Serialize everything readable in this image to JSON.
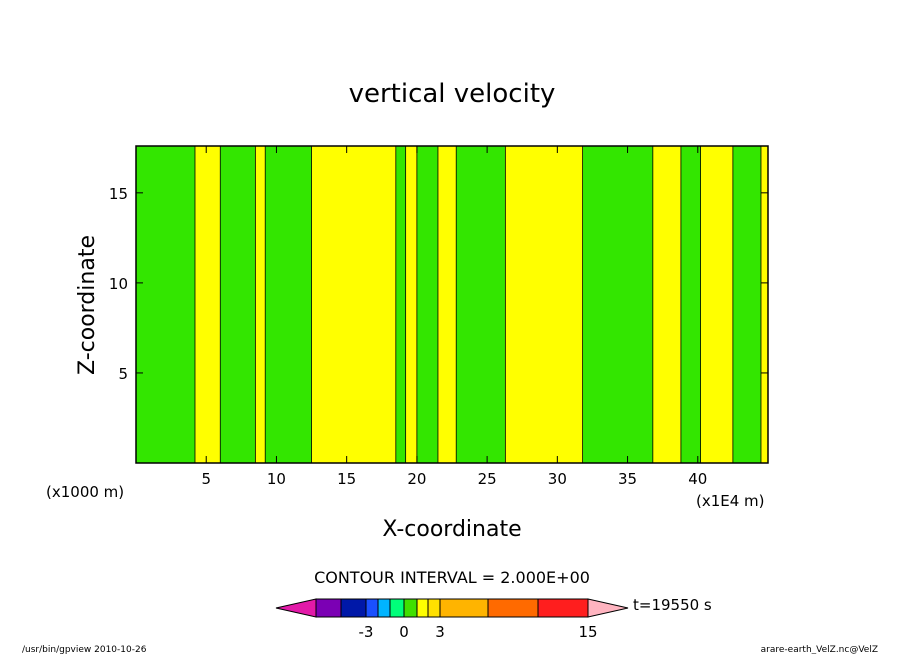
{
  "chart_data": {
    "type": "heatmap",
    "title": "vertical velocity",
    "xlabel": "X-coordinate",
    "ylabel": "Z-coordinate",
    "xunit_left": "(x1000 m)",
    "xunit_right": "(x1E4 m)",
    "xlim": [
      0,
      45
    ],
    "ylim": [
      0,
      17.6
    ],
    "xticks": [
      5,
      10,
      15,
      20,
      25,
      30,
      35,
      40
    ],
    "yticks": [
      5,
      10,
      15
    ],
    "xtick_labels": [
      "5",
      "10",
      "15",
      "20",
      "25",
      "30",
      "35",
      "40"
    ],
    "ytick_labels": [
      "5",
      "10",
      "15"
    ],
    "grid": false,
    "contour_interval": "CONTOUR INTERVAL = 2.000E+00",
    "time_label": "t=19550 s",
    "colorbar": {
      "colors": [
        "#e21aa8",
        "#7b00b4",
        "#0018a8",
        "#1a50ff",
        "#00b4ff",
        "#00ff7a",
        "#40e000",
        "#ffff00",
        "#ffe000",
        "#ffb400",
        "#ff6a00",
        "#ff1e1e",
        "#ff7070",
        "#ffb4c0"
      ],
      "tick_labels": [
        "-3",
        "0",
        "3",
        "15"
      ]
    },
    "field_colors": {
      "positive": "#ffff00",
      "negative": "#33e600"
    },
    "green_bands": [
      {
        "x": [
          0,
          4.2
        ]
      },
      {
        "x": [
          6,
          8.5
        ]
      },
      {
        "x": [
          9.2,
          12.5
        ]
      },
      {
        "x": [
          18.5,
          19.2
        ]
      },
      {
        "x": [
          20,
          21.5
        ]
      },
      {
        "x": [
          22.8,
          26.3
        ]
      },
      {
        "x": [
          31.8,
          36.8
        ]
      },
      {
        "x": [
          38.8,
          40.2
        ]
      },
      {
        "x": [
          42.5,
          44.5
        ]
      }
    ]
  },
  "footer": {
    "left": "/usr/bin/gpview   2010-10-26",
    "right": "arare-earth_VelZ.nc@VelZ"
  }
}
